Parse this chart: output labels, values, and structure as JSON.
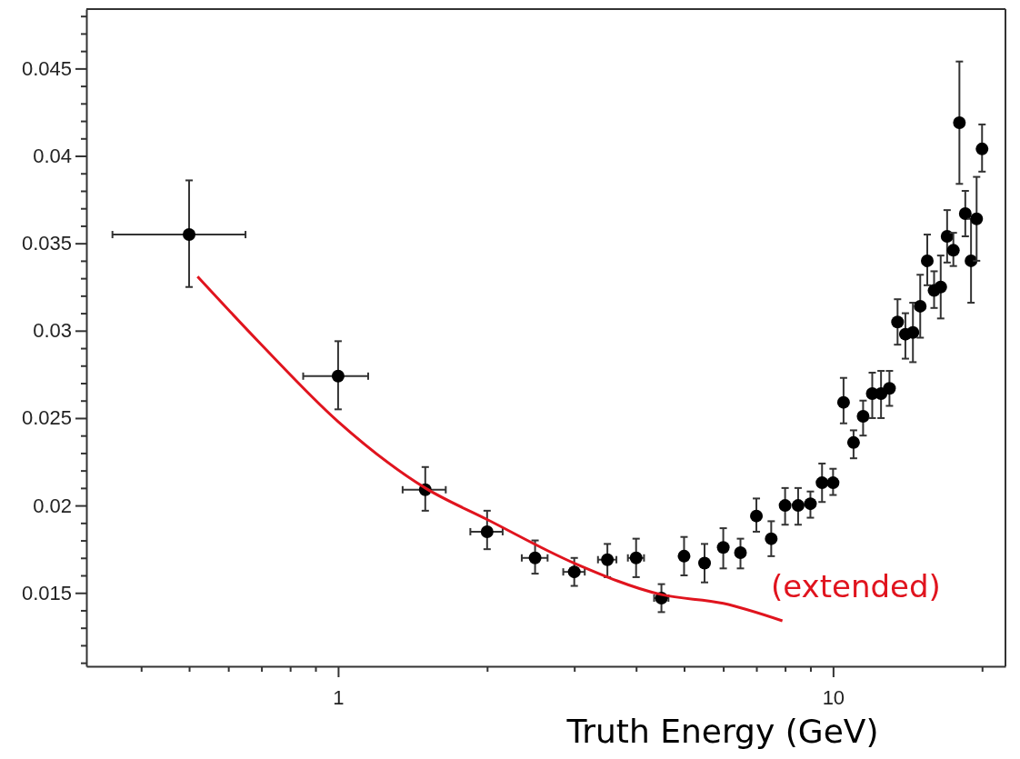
{
  "chart_data": {
    "type": "scatter",
    "xlabel": "Truth Energy (GeV)",
    "log": "x",
    "xlim": [
      0.31,
      22.3
    ],
    "ylim": [
      0.0108,
      0.0484
    ],
    "xticks": [
      {
        "value": 0.4,
        "label": null
      },
      {
        "value": 0.5,
        "label": null
      },
      {
        "value": 0.6,
        "label": null
      },
      {
        "value": 0.7,
        "label": null
      },
      {
        "value": 0.8,
        "label": null
      },
      {
        "value": 0.9,
        "label": null
      },
      1,
      {
        "value": 2,
        "label": null
      },
      {
        "value": 3,
        "label": null
      },
      {
        "value": 4,
        "label": null
      },
      {
        "value": 5,
        "label": null
      },
      {
        "value": 6,
        "label": null
      },
      {
        "value": 7,
        "label": null
      },
      {
        "value": 8,
        "label": null
      },
      {
        "value": 9,
        "label": null
      },
      10,
      {
        "value": 20,
        "label": null
      }
    ],
    "yticks": [
      {
        "value": 0.011,
        "label": null
      },
      {
        "value": 0.012,
        "label": null
      },
      {
        "value": 0.013,
        "label": null
      },
      {
        "value": 0.014,
        "label": null
      },
      0.015,
      {
        "value": 0.016,
        "label": null
      },
      {
        "value": 0.017,
        "label": null
      },
      {
        "value": 0.018,
        "label": null
      },
      {
        "value": 0.019,
        "label": null
      },
      0.02,
      {
        "value": 0.021,
        "label": null
      },
      {
        "value": 0.022,
        "label": null
      },
      {
        "value": 0.023,
        "label": null
      },
      {
        "value": 0.024,
        "label": null
      },
      0.025,
      {
        "value": 0.026,
        "label": null
      },
      {
        "value": 0.027,
        "label": null
      },
      {
        "value": 0.028,
        "label": null
      },
      {
        "value": 0.029,
        "label": null
      },
      0.03,
      {
        "value": 0.031,
        "label": null
      },
      {
        "value": 0.032,
        "label": null
      },
      {
        "value": 0.033,
        "label": null
      },
      {
        "value": 0.034,
        "label": null
      },
      0.035,
      {
        "value": 0.036,
        "label": null
      },
      {
        "value": 0.037,
        "label": null
      },
      {
        "value": 0.038,
        "label": null
      },
      {
        "value": 0.039,
        "label": null
      },
      0.04,
      {
        "value": 0.041,
        "label": null
      },
      {
        "value": 0.042,
        "label": null
      },
      {
        "value": 0.043,
        "label": null
      },
      {
        "value": 0.044,
        "label": null
      },
      0.045,
      {
        "value": 0.046,
        "label": null
      },
      {
        "value": 0.047,
        "label": null
      },
      {
        "value": 0.048,
        "label": null
      }
    ],
    "grid": false,
    "annotations": [
      "(extended)"
    ],
    "series": [
      {
        "color": "#000000",
        "marker": "circle",
        "x": [
          0.5,
          1,
          1.5,
          2,
          2.5,
          3,
          3.5,
          4,
          4.5,
          5,
          5.5,
          6,
          6.5,
          7,
          7.5,
          8,
          8.5,
          9,
          9.5,
          10,
          10.5,
          11,
          11.5,
          12,
          12.5,
          13,
          13.5,
          14,
          14.5,
          15,
          15.5,
          16,
          16.5,
          17,
          17.5,
          18,
          18.5,
          19,
          19.5,
          20
        ],
        "values": [
          0.0355,
          0.0274,
          0.0209,
          0.0185,
          0.017,
          0.0162,
          0.0169,
          0.017,
          0.0147,
          0.0171,
          0.0167,
          0.0176,
          0.0173,
          0.0194,
          0.0181,
          0.02,
          0.02,
          0.0201,
          0.0213,
          0.0213,
          0.0259,
          0.0236,
          0.0251,
          0.0264,
          0.0264,
          0.0267,
          0.0305,
          0.0298,
          0.0299,
          0.0314,
          0.034,
          0.0323,
          0.0325,
          0.0354,
          0.0346,
          0.0419,
          0.0367,
          0.034,
          0.0364,
          0.0404
        ],
        "errors": [
          [
            0.0325,
            0.0386
          ],
          [
            0.0255,
            0.0294
          ],
          [
            0.0197,
            0.0222
          ],
          [
            0.0175,
            0.0197
          ],
          [
            0.0161,
            0.018
          ],
          [
            0.0154,
            0.017
          ],
          [
            0.0159,
            0.0178
          ],
          [
            0.0159,
            0.0181
          ],
          [
            0.0139,
            0.0155
          ],
          [
            0.016,
            0.0182
          ],
          [
            0.0156,
            0.0178
          ],
          [
            0.0164,
            0.0187
          ],
          [
            0.0164,
            0.0181
          ],
          [
            0.0185,
            0.0204
          ],
          [
            0.0171,
            0.0191
          ],
          [
            0.0189,
            0.021
          ],
          [
            0.0189,
            0.021
          ],
          [
            0.0193,
            0.0208
          ],
          [
            0.0202,
            0.0224
          ],
          [
            0.0206,
            0.0221
          ],
          [
            0.0247,
            0.0273
          ],
          [
            0.0227,
            0.0243
          ],
          [
            0.024,
            0.026
          ],
          [
            0.025,
            0.0276
          ],
          [
            0.025,
            0.0277
          ],
          [
            0.0257,
            0.0277
          ],
          [
            0.0292,
            0.0318
          ],
          [
            0.0284,
            0.031
          ],
          [
            0.0282,
            0.0316
          ],
          [
            0.0296,
            0.0332
          ],
          [
            0.0326,
            0.0355
          ],
          [
            0.0313,
            0.0334
          ],
          [
            0.0307,
            0.0343
          ],
          [
            0.0339,
            0.0369
          ],
          [
            0.0337,
            0.0356
          ],
          [
            0.0384,
            0.0454
          ],
          [
            0.0354,
            0.038
          ],
          [
            0.0316,
            0.0364
          ],
          [
            0.034,
            0.0388
          ],
          [
            0.0391,
            0.0418
          ]
        ],
        "xerrors": [
          [
            0.35,
            0.65
          ],
          [
            0.85,
            1.15
          ],
          [
            1.35,
            1.65
          ],
          [
            1.85,
            2.15
          ],
          [
            2.35,
            2.65
          ],
          [
            2.85,
            3.15
          ],
          [
            3.35,
            3.65
          ],
          [
            3.85,
            4.15
          ],
          [
            4.35,
            4.65
          ],
          null,
          null,
          null,
          null,
          null,
          null,
          null,
          null,
          null,
          null,
          null,
          null,
          null,
          null,
          null,
          null,
          null,
          null,
          null,
          null,
          null,
          null,
          null,
          null,
          null,
          null,
          null,
          null,
          null,
          null,
          null
        ]
      },
      {
        "type": "line",
        "color": "#e0141e",
        "marker": "none",
        "line_style": "solid",
        "x": [
          0.52,
          0.7,
          1,
          1.5,
          2,
          3,
          4.5,
          6,
          7.9
        ],
        "values": [
          0.0331,
          0.0292,
          0.0248,
          0.021,
          0.0192,
          0.0167,
          0.0149,
          0.0144,
          0.0134
        ]
      }
    ]
  }
}
